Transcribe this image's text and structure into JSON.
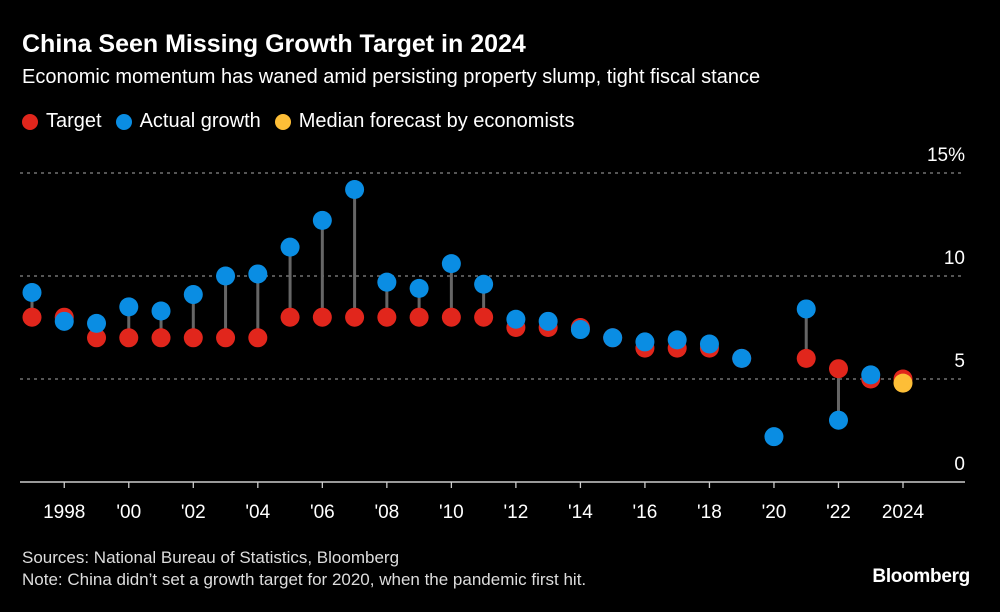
{
  "chart_data": {
    "type": "scatter",
    "title": "China Seen Missing Growth Target in 2024",
    "subtitle": "Economic momentum has waned amid persisting property slump, tight fiscal stance",
    "x": [
      1997,
      1998,
      1999,
      2000,
      2001,
      2002,
      2003,
      2004,
      2005,
      2006,
      2007,
      2008,
      2009,
      2010,
      2011,
      2012,
      2013,
      2014,
      2015,
      2016,
      2017,
      2018,
      2019,
      2020,
      2021,
      2022,
      2023,
      2024
    ],
    "series": [
      {
        "name": "Target",
        "color": "#e1261c",
        "values": [
          8,
          8,
          7,
          7,
          7,
          7,
          7,
          7,
          8,
          8,
          8,
          8,
          8,
          8,
          8,
          7.5,
          7.5,
          7.5,
          7,
          6.5,
          6.5,
          6.5,
          6,
          null,
          6,
          5.5,
          5,
          5
        ]
      },
      {
        "name": "Actual growth",
        "color": "#0a8de3",
        "values": [
          9.2,
          7.8,
          7.7,
          8.5,
          8.3,
          9.1,
          10.0,
          10.1,
          11.4,
          12.7,
          14.2,
          9.7,
          9.4,
          10.6,
          9.6,
          7.9,
          7.8,
          7.4,
          7.0,
          6.8,
          6.9,
          6.7,
          6.0,
          2.2,
          8.4,
          3.0,
          5.2,
          null
        ]
      },
      {
        "name": "Median forecast by economists",
        "color": "#fdbe37",
        "values": [
          null,
          null,
          null,
          null,
          null,
          null,
          null,
          null,
          null,
          null,
          null,
          null,
          null,
          null,
          null,
          null,
          null,
          null,
          null,
          null,
          null,
          null,
          null,
          null,
          null,
          null,
          null,
          4.8
        ]
      }
    ],
    "ylim": [
      0,
      15
    ],
    "yticks": [
      "0",
      "5",
      "10",
      "15%"
    ],
    "ytick_values": [
      0,
      5,
      10,
      15
    ],
    "xticks": [
      "1998",
      "'00",
      "'02",
      "'04",
      "'06",
      "'08",
      "'10",
      "'12",
      "'14",
      "'16",
      "'18",
      "'20",
      "'22",
      "2024"
    ],
    "xtick_values": [
      1998,
      2000,
      2002,
      2004,
      2006,
      2008,
      2010,
      2012,
      2014,
      2016,
      2018,
      2020,
      2022,
      2024
    ],
    "grid": true,
    "legend": "top-left"
  },
  "footer": {
    "sources": "Sources: National Bureau of Statistics, Bloomberg",
    "note": "Note: China didn’t set a growth target for 2020, when the pandemic first hit.",
    "logo": "Bloomberg"
  }
}
